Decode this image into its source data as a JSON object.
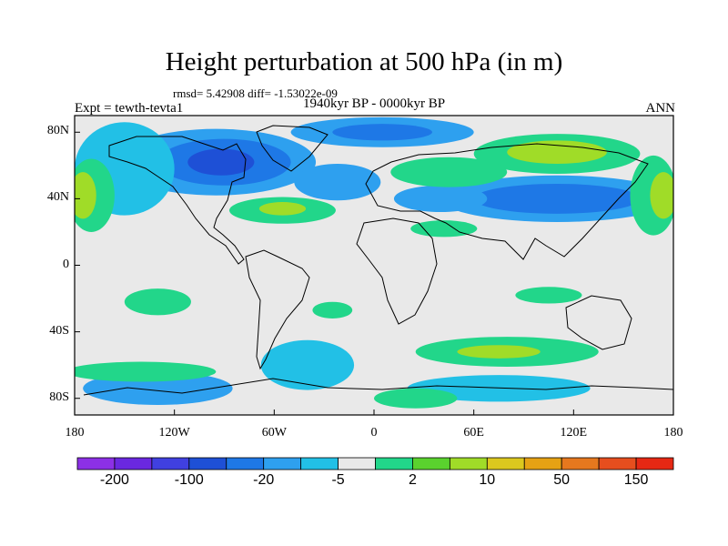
{
  "title": "Height perturbation at 500 hPa (in m)",
  "stats": "rmsd= 5.42908 diff= -1.53022e-09",
  "period": "1940kyr BP - 0000kyr BP",
  "left_label": "Expt = tewth-tevta1",
  "right_label": "ANN",
  "chart_data": {
    "type": "heatmap",
    "title": "Height perturbation at 500 hPa (in m)",
    "x_range": [
      -180,
      180
    ],
    "y_range": [
      -90,
      90
    ],
    "x_ticks": [
      {
        "value": -180,
        "label": "180"
      },
      {
        "value": -120,
        "label": "120W"
      },
      {
        "value": -60,
        "label": "60W"
      },
      {
        "value": 0,
        "label": "0"
      },
      {
        "value": 60,
        "label": "60E"
      },
      {
        "value": 120,
        "label": "120E"
      },
      {
        "value": 180,
        "label": "180"
      }
    ],
    "y_ticks": [
      {
        "value": 80,
        "label": "80N"
      },
      {
        "value": 40,
        "label": "40N"
      },
      {
        "value": 0,
        "label": "0"
      },
      {
        "value": -40,
        "label": "40S"
      },
      {
        "value": -80,
        "label": "80S"
      }
    ],
    "colorbar": {
      "colors": [
        "#8c30e6",
        "#6a28e0",
        "#4040e0",
        "#1e50d6",
        "#1e78e6",
        "#2ea0ef",
        "#22c0e6",
        "#e9e9e9",
        "#22d68a",
        "#5ad22e",
        "#a0dc28",
        "#dcc81e",
        "#e6a214",
        "#e6781e",
        "#e64e1e",
        "#e62814"
      ],
      "labels": [
        {
          "boundary": 1,
          "text": "-200"
        },
        {
          "boundary": 3,
          "text": "-100"
        },
        {
          "boundary": 5,
          "text": "-20"
        },
        {
          "boundary": 7,
          "text": "-5"
        },
        {
          "boundary": 9,
          "text": "2"
        },
        {
          "boundary": 11,
          "text": "10"
        },
        {
          "boundary": 13,
          "text": "50"
        },
        {
          "boundary": 15,
          "text": "150"
        }
      ]
    },
    "regions": [
      {
        "kind": "negative",
        "color": "#2ea0ef",
        "lon": -95,
        "lat": 62,
        "rlon": 60,
        "rlat": 20
      },
      {
        "kind": "negative",
        "color": "#1e78e6",
        "lon": -90,
        "lat": 62,
        "rlon": 40,
        "rlat": 14
      },
      {
        "kind": "negative",
        "color": "#1e50d6",
        "lon": -92,
        "lat": 62,
        "rlon": 20,
        "rlat": 8
      },
      {
        "kind": "negative",
        "color": "#2ea0ef",
        "lon": 5,
        "lat": 80,
        "rlon": 55,
        "rlat": 9
      },
      {
        "kind": "negative",
        "color": "#1e78e6",
        "lon": 5,
        "lat": 80,
        "rlon": 30,
        "rlat": 5
      },
      {
        "kind": "negative",
        "color": "#2ea0ef",
        "lon": -22,
        "lat": 50,
        "rlon": 26,
        "rlat": 11
      },
      {
        "kind": "negative",
        "color": "#2ea0ef",
        "lon": 110,
        "lat": 40,
        "rlon": 70,
        "rlat": 14
      },
      {
        "kind": "negative",
        "color": "#1e78e6",
        "lon": 110,
        "lat": 40,
        "rlon": 50,
        "rlat": 9
      },
      {
        "kind": "negative",
        "color": "#2ea0ef",
        "lon": 40,
        "lat": 40,
        "rlon": 28,
        "rlat": 8
      },
      {
        "kind": "negative",
        "color": "#22c0e6",
        "lon": -150,
        "lat": 58,
        "rlon": 30,
        "rlat": 28
      },
      {
        "kind": "negative",
        "color": "#22c0e6",
        "lon": -40,
        "lat": -60,
        "rlon": 28,
        "rlat": 15
      },
      {
        "kind": "negative",
        "color": "#2ea0ef",
        "lon": -130,
        "lat": -74,
        "rlon": 45,
        "rlat": 10
      },
      {
        "kind": "negative",
        "color": "#22c0e6",
        "lon": 75,
        "lat": -74,
        "rlon": 55,
        "rlat": 8
      },
      {
        "kind": "positive",
        "color": "#22d68a",
        "lon": -170,
        "lat": 42,
        "rlon": 14,
        "rlat": 22
      },
      {
        "kind": "positive",
        "color": "#a0dc28",
        "lon": -175,
        "lat": 42,
        "rlon": 8,
        "rlat": 14
      },
      {
        "kind": "positive",
        "color": "#22d68a",
        "lon": 168,
        "lat": 42,
        "rlon": 14,
        "rlat": 24
      },
      {
        "kind": "positive",
        "color": "#a0dc28",
        "lon": 174,
        "lat": 42,
        "rlon": 8,
        "rlat": 14
      },
      {
        "kind": "positive",
        "color": "#22d68a",
        "lon": -55,
        "lat": 33,
        "rlon": 32,
        "rlat": 8
      },
      {
        "kind": "positive",
        "color": "#a0dc28",
        "lon": -55,
        "lat": 34,
        "rlon": 14,
        "rlat": 4
      },
      {
        "kind": "positive",
        "color": "#22d68a",
        "lon": 110,
        "lat": 67,
        "rlon": 50,
        "rlat": 12
      },
      {
        "kind": "positive",
        "color": "#a0dc28",
        "lon": 110,
        "lat": 68,
        "rlon": 30,
        "rlat": 7
      },
      {
        "kind": "positive",
        "color": "#22d68a",
        "lon": 45,
        "lat": 56,
        "rlon": 35,
        "rlat": 9
      },
      {
        "kind": "positive",
        "color": "#22d68a",
        "lon": 42,
        "lat": 22,
        "rlon": 20,
        "rlat": 5
      },
      {
        "kind": "positive",
        "color": "#22d68a",
        "lon": -130,
        "lat": -22,
        "rlon": 20,
        "rlat": 8
      },
      {
        "kind": "positive",
        "color": "#22d68a",
        "lon": -25,
        "lat": -27,
        "rlon": 12,
        "rlat": 5
      },
      {
        "kind": "positive",
        "color": "#22d68a",
        "lon": 80,
        "lat": -52,
        "rlon": 55,
        "rlat": 9
      },
      {
        "kind": "positive",
        "color": "#a0dc28",
        "lon": 75,
        "lat": -52,
        "rlon": 25,
        "rlat": 4
      },
      {
        "kind": "positive",
        "color": "#22d68a",
        "lon": 105,
        "lat": -18,
        "rlon": 20,
        "rlat": 5
      },
      {
        "kind": "positive",
        "color": "#22d68a",
        "lon": -140,
        "lat": -64,
        "rlon": 45,
        "rlat": 6
      },
      {
        "kind": "positive",
        "color": "#22d68a",
        "lon": 25,
        "lat": -80,
        "rlon": 25,
        "rlat": 6
      }
    ]
  },
  "icons": {
    "continents": "continent-outline-icon"
  }
}
